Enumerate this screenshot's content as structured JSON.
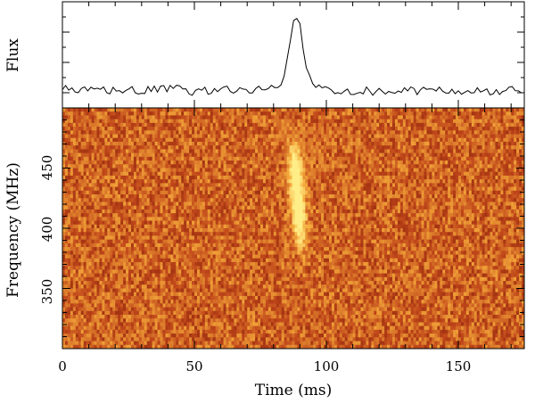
{
  "chart_data": [
    {
      "type": "line",
      "panel": "profile",
      "ylabel": "Flux",
      "xlabel": "",
      "xlim": [
        0,
        175
      ],
      "grid": false,
      "series": [
        {
          "values": [
            {
              "x": 0,
              "y": 0.12
            },
            {
              "x": 10,
              "y": 0.1
            },
            {
              "x": 20,
              "y": 0.12
            },
            {
              "x": 30,
              "y": 0.1
            },
            {
              "x": 40,
              "y": 0.13
            },
            {
              "x": 50,
              "y": 0.1
            },
            {
              "x": 60,
              "y": 0.12
            },
            {
              "x": 70,
              "y": 0.11
            },
            {
              "x": 80,
              "y": 0.14
            },
            {
              "x": 84,
              "y": 0.22
            },
            {
              "x": 86,
              "y": 0.6
            },
            {
              "x": 88,
              "y": 0.95
            },
            {
              "x": 90,
              "y": 0.8
            },
            {
              "x": 92,
              "y": 0.35
            },
            {
              "x": 95,
              "y": 0.18
            },
            {
              "x": 100,
              "y": 0.12
            },
            {
              "x": 120,
              "y": 0.1
            },
            {
              "x": 140,
              "y": 0.11
            },
            {
              "x": 160,
              "y": 0.1
            },
            {
              "x": 175,
              "y": 0.11
            }
          ]
        }
      ]
    },
    {
      "type": "heatmap",
      "panel": "dynamic-spectrum",
      "xlabel": "Time (ms)",
      "ylabel": "Frequency (MHz)",
      "xlim": [
        0,
        175
      ],
      "ylim": [
        300,
        500
      ],
      "xticks": [
        "0",
        "50",
        "100",
        "150"
      ],
      "yticks": [
        "350",
        "400",
        "450"
      ],
      "grid": false,
      "colormap": [
        "#6a0d04",
        "#c0471a",
        "#f4a83a",
        "#ffee88"
      ],
      "pulse": {
        "time_ms": 89,
        "freq_range_mhz": [
          385,
          470
        ]
      }
    }
  ]
}
